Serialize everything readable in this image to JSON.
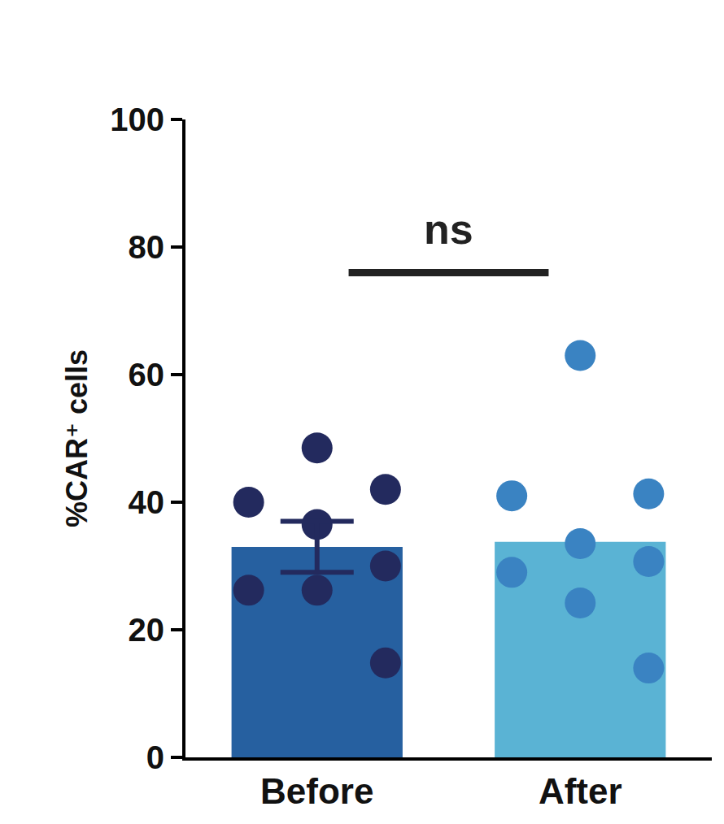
{
  "chart_data": {
    "type": "bar",
    "ylabel": "%CAR⁺ cells",
    "categories": [
      "Before",
      "After"
    ],
    "values": [
      33,
      33.8
    ],
    "colors": [
      "#2660a0",
      "#5ab3d4"
    ],
    "errors": [
      4,
      null
    ],
    "points": [
      [
        48.5,
        42,
        40,
        36.5,
        30,
        26.2,
        26.2,
        14.8
      ],
      [
        63,
        41,
        41.3,
        33.5,
        30.7,
        29,
        24.2,
        14
      ]
    ],
    "point_colors": [
      "#232a5e",
      "#3a83c2"
    ],
    "ylim": [
      0,
      100
    ],
    "yticks": [
      0,
      20,
      40,
      60,
      80,
      100
    ],
    "annotations": [
      {
        "text": "ns",
        "y": 76
      }
    ]
  }
}
